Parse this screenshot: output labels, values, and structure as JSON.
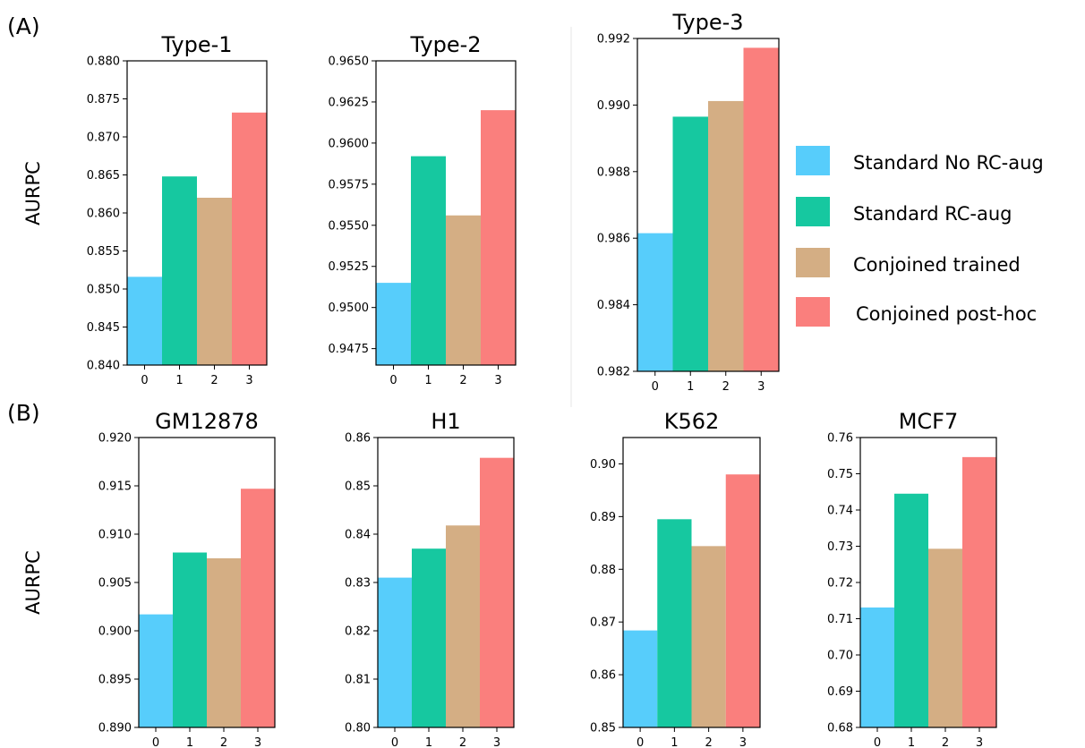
{
  "panel_labels": [
    "(A)",
    "(B)"
  ],
  "legend": {
    "placement": "right of row A",
    "items": [
      {
        "label": "Standard No RC-aug",
        "color": "#57cdfb"
      },
      {
        "label": "Standard RC-aug",
        "color": "#16c8a0"
      },
      {
        "label": "Conjoined trained",
        "color": "#d4ae84"
      },
      {
        "label": "Conjoined post-hoc",
        "color": "#fa7f7d"
      }
    ]
  },
  "colors": [
    "#57cdfb",
    "#16c8a0",
    "#d4ae84",
    "#fa7f7d"
  ],
  "chart_data": [
    {
      "type": "bar",
      "title": "Type-1",
      "ylabel": "AURPC",
      "categories": [
        "0",
        "1",
        "2",
        "3"
      ],
      "values": [
        0.8516,
        0.8648,
        0.862,
        0.8732
      ],
      "ylim": [
        0.84,
        0.88
      ],
      "yticks": [
        "0.840",
        "0.845",
        "0.850",
        "0.855",
        "0.860",
        "0.865",
        "0.870",
        "0.875",
        "0.880"
      ]
    },
    {
      "type": "bar",
      "title": "Type-2",
      "ylabel": "",
      "categories": [
        "0",
        "1",
        "2",
        "3"
      ],
      "values": [
        0.9515,
        0.9592,
        0.9556,
        0.962
      ],
      "ylim": [
        0.9465,
        0.965
      ],
      "yticks": [
        "0.9475",
        "0.9500",
        "0.9525",
        "0.9550",
        "0.9575",
        "0.9600",
        "0.9625",
        "0.9650"
      ]
    },
    {
      "type": "bar",
      "title": "Type-3",
      "ylabel": "",
      "categories": [
        "0",
        "1",
        "2",
        "3"
      ],
      "values": [
        0.98615,
        0.98965,
        0.99012,
        0.99172
      ],
      "ylim": [
        0.982,
        0.992
      ],
      "yticks": [
        "0.982",
        "0.984",
        "0.986",
        "0.988",
        "0.990",
        "0.992"
      ]
    },
    {
      "type": "bar",
      "title": "GM12878",
      "ylabel": "AURPC",
      "categories": [
        "0",
        "1",
        "2",
        "3"
      ],
      "values": [
        0.9017,
        0.9081,
        0.9075,
        0.9147
      ],
      "ylim": [
        0.89,
        0.92
      ],
      "yticks": [
        "0.890",
        "0.895",
        "0.900",
        "0.905",
        "0.910",
        "0.915",
        "0.920"
      ]
    },
    {
      "type": "bar",
      "title": "H1",
      "ylabel": "",
      "categories": [
        "0",
        "1",
        "2",
        "3"
      ],
      "values": [
        0.831,
        0.837,
        0.8418,
        0.8558
      ],
      "ylim": [
        0.8,
        0.86
      ],
      "yticks": [
        "0.80",
        "0.81",
        "0.82",
        "0.83",
        "0.84",
        "0.85",
        "0.86"
      ]
    },
    {
      "type": "bar",
      "title": "K562",
      "ylabel": "",
      "categories": [
        "0",
        "1",
        "2",
        "3"
      ],
      "values": [
        0.8684,
        0.8895,
        0.8844,
        0.898
      ],
      "ylim": [
        0.85,
        0.905
      ],
      "yticks": [
        "0.85",
        "0.86",
        "0.87",
        "0.88",
        "0.89",
        "0.90"
      ]
    },
    {
      "type": "bar",
      "title": "MCF7",
      "ylabel": "",
      "categories": [
        "0",
        "1",
        "2",
        "3"
      ],
      "values": [
        0.7131,
        0.7445,
        0.7293,
        0.7546
      ],
      "ylim": [
        0.68,
        0.76
      ],
      "yticks": [
        "0.68",
        "0.69",
        "0.70",
        "0.71",
        "0.72",
        "0.73",
        "0.74",
        "0.75",
        "0.76"
      ]
    }
  ]
}
